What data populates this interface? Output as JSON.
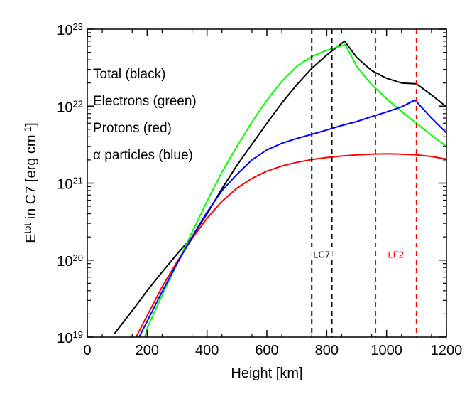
{
  "chart_data": {
    "type": "line",
    "xlabel": "Height [km]",
    "ylabel": {
      "pre": "E",
      "sup": "tot",
      "mid": " in C7 [erg cm",
      "sup2": "-1",
      "post": "]"
    },
    "xlim": [
      0,
      1200
    ],
    "ylim": [
      1e+19,
      1e+23
    ],
    "yscale": "log",
    "xticks": [
      0,
      200,
      400,
      600,
      800,
      1000,
      1200
    ],
    "xtick_labels": [
      "0",
      "200",
      "400",
      "600",
      "800",
      "1000",
      "1200"
    ],
    "yticks": [
      1e+19,
      1e+20,
      1e+21,
      1e+22,
      1e+23
    ],
    "ytick_labels": [
      {
        "base": "10",
        "exp": "19"
      },
      {
        "base": "10",
        "exp": "20"
      },
      {
        "base": "10",
        "exp": "21"
      },
      {
        "base": "10",
        "exp": "22"
      },
      {
        "base": "10",
        "exp": "23"
      }
    ],
    "legend_entries": [
      "Total (black)",
      "Electrons (green)",
      "Protons (red)",
      "α particles (blue)"
    ],
    "series": [
      {
        "name": "Total (black)",
        "color": "#000000",
        "x": [
          90,
          150,
          200,
          250,
          300,
          350,
          400,
          450,
          500,
          550,
          600,
          650,
          700,
          750,
          800,
          860,
          900,
          950,
          1000,
          1050,
          1100,
          1150,
          1200
        ],
        "y": [
          1.1e+19,
          2.2e+19,
          4e+19,
          7e+19,
          1.2e+20,
          2e+20,
          4e+20,
          8.5e+20,
          1.7e+21,
          3.2e+21,
          6e+21,
          1.1e+22,
          1.9e+22,
          3.1e+22,
          4.6e+22,
          7e+22,
          4.3e+22,
          2.9e+22,
          2.3e+22,
          2e+22,
          1.95e+22,
          1.4e+22,
          9.8e+21
        ]
      },
      {
        "name": "Electrons (green)",
        "color": "#00ff00",
        "x": [
          185,
          200,
          250,
          300,
          350,
          400,
          450,
          500,
          550,
          600,
          650,
          700,
          750,
          800,
          862,
          900,
          950,
          1000,
          1050,
          1100,
          1150,
          1200
        ],
        "y": [
          8e+18,
          1.3e+19,
          3.5e+19,
          9e+19,
          2.3e+20,
          5.8e+20,
          1.4e+21,
          3e+21,
          6.2e+21,
          1.2e+22,
          2.1e+22,
          3.3e+22,
          4.4e+22,
          5.3e+22,
          6.3e+22,
          3.3e+22,
          1.9e+22,
          1.25e+22,
          8.5e+21,
          6e+21,
          4.2e+21,
          3e+21
        ]
      },
      {
        "name": "Protons (red)",
        "color": "#ff0000",
        "x": [
          150,
          200,
          250,
          300,
          350,
          400,
          450,
          500,
          550,
          600,
          650,
          700,
          750,
          800,
          850,
          900,
          950,
          1000,
          1050,
          1100,
          1150,
          1200
        ],
        "y": [
          8e+18,
          1.9e+19,
          4.5e+19,
          9.5e+19,
          1.9e+20,
          3.5e+20,
          5.8e+20,
          8.6e+20,
          1.15e+21,
          1.43e+21,
          1.67e+21,
          1.86e+21,
          2.02e+21,
          2.15e+21,
          2.25e+21,
          2.33e+21,
          2.38e+21,
          2.4e+21,
          2.38e+21,
          2.33e+21,
          2.22e+21,
          2.05e+21
        ]
      },
      {
        "name": "α particles (blue)",
        "color": "#0000ff",
        "x": [
          160,
          200,
          250,
          300,
          350,
          400,
          450,
          500,
          550,
          600,
          650,
          700,
          750,
          800,
          850,
          900,
          950,
          1000,
          1050,
          1095,
          1150,
          1200
        ],
        "y": [
          8e+18,
          1.6e+19,
          3.9e+19,
          9e+19,
          2e+20,
          4.2e+20,
          8e+20,
          1.3e+21,
          2e+21,
          2.7e+21,
          3.3e+21,
          3.8e+21,
          4.3e+21,
          4.9e+21,
          5.6e+21,
          6.3e+21,
          7.3e+21,
          8.4e+21,
          9.8e+21,
          1.2e+22,
          7e+21,
          4.5e+21
        ]
      }
    ],
    "reference_lines": [
      {
        "x": 750,
        "color": "#000000",
        "style": "dashed"
      },
      {
        "x": 817,
        "color": "#000000",
        "style": "dashed"
      },
      {
        "x": 963,
        "color": "#ff0000",
        "style": "dashed"
      },
      {
        "x": 1100,
        "color": "#ff0000",
        "style": "dashed"
      }
    ],
    "annotations": [
      {
        "text": "LC7",
        "color": "#000000",
        "x": 783,
        "y": 1.1e+20
      },
      {
        "text": "LF2",
        "color": "#ff0000",
        "x": 1031,
        "y": 1.1e+20
      }
    ]
  }
}
